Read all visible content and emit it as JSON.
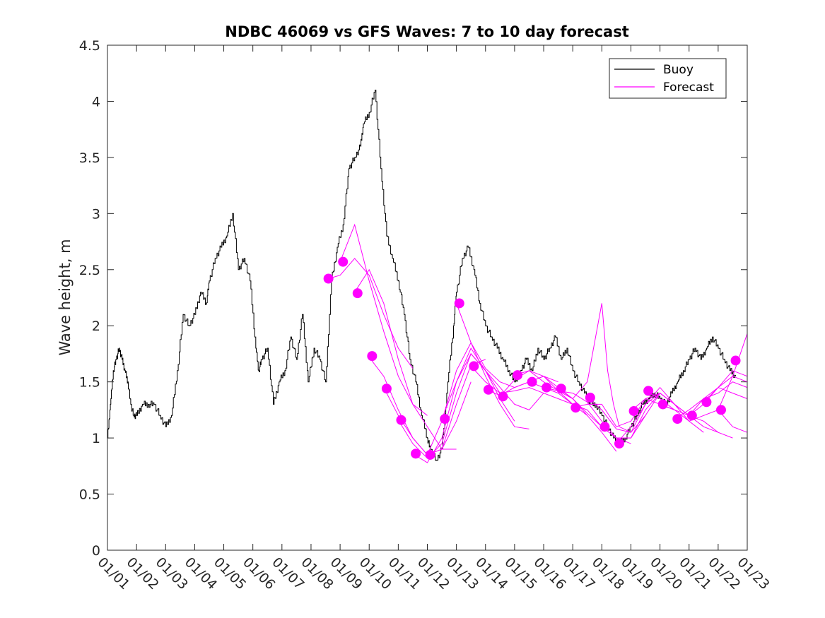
{
  "chart_data": {
    "type": "line",
    "title": "NDBC 46069 vs GFS Waves: 7 to 10 day forecast",
    "xlabel": "",
    "ylabel": "Wave height, m",
    "xlim": [
      0,
      22
    ],
    "ylim": [
      0,
      4.5
    ],
    "yticks": [
      0,
      0.5,
      1,
      1.5,
      2,
      2.5,
      3,
      3.5,
      4,
      4.5
    ],
    "ytick_labels": [
      "0",
      "0.5",
      "1",
      "1.5",
      "2",
      "2.5",
      "3",
      "3.5",
      "4",
      "4.5"
    ],
    "xtick_labels": [
      "01/01",
      "01/02",
      "01/03",
      "01/04",
      "01/05",
      "01/06",
      "01/07",
      "01/08",
      "01/09",
      "01/10",
      "01/11",
      "01/12",
      "01/13",
      "01/14",
      "01/15",
      "01/16",
      "01/17",
      "01/18",
      "01/19",
      "01/20",
      "01/21",
      "01/22",
      "01/23"
    ],
    "legend": {
      "position": "top-right",
      "entries": [
        {
          "name": "Buoy",
          "color": "#000000"
        },
        {
          "name": "Forecast",
          "color": "#ff00ff"
        }
      ]
    },
    "buoy": {
      "name": "Buoy",
      "color": "#000000",
      "x": [
        0,
        0.1,
        0.2,
        0.3,
        0.4,
        0.5,
        0.6,
        0.7,
        0.8,
        0.9,
        1.0,
        1.2,
        1.4,
        1.6,
        1.8,
        2.0,
        2.2,
        2.4,
        2.6,
        2.8,
        3.0,
        3.2,
        3.4,
        3.5,
        3.7,
        3.9,
        4.1,
        4.3,
        4.5,
        4.7,
        4.9,
        5.1,
        5.2,
        5.3,
        5.5,
        5.7,
        5.9,
        6.1,
        6.3,
        6.5,
        6.7,
        6.9,
        7.1,
        7.3,
        7.5,
        7.7,
        7.9,
        8.1,
        8.3,
        8.5,
        8.7,
        8.8,
        9.0,
        9.2,
        9.4,
        9.6,
        9.8,
        10.0,
        10.2,
        10.4,
        10.6,
        10.8,
        11.0,
        11.1,
        11.3,
        11.5,
        11.7,
        11.9,
        12.0,
        12.2,
        12.4,
        12.6,
        12.8,
        13.0,
        13.2,
        13.4,
        13.6,
        13.8,
        14.0,
        14.2,
        14.4,
        14.6,
        14.8,
        15.0,
        15.2,
        15.4,
        15.6,
        15.8,
        16.0,
        16.2,
        16.4,
        16.6,
        16.8,
        17.0,
        17.2,
        17.4,
        17.6,
        17.8,
        18.0,
        18.2,
        18.4,
        18.6,
        18.8,
        19.0,
        19.2,
        19.4,
        19.6,
        19.8,
        20.0,
        20.2,
        20.4,
        20.6,
        20.8,
        21.0,
        21.2,
        21.4,
        21.6
      ],
      "y": [
        1.0,
        1.3,
        1.6,
        1.7,
        1.8,
        1.7,
        1.6,
        1.5,
        1.3,
        1.2,
        1.2,
        1.3,
        1.3,
        1.3,
        1.2,
        1.1,
        1.2,
        1.6,
        2.1,
        2.0,
        2.1,
        2.3,
        2.2,
        2.4,
        2.6,
        2.7,
        2.8,
        3.0,
        2.5,
        2.6,
        2.4,
        1.8,
        1.6,
        1.7,
        1.8,
        1.3,
        1.5,
        1.6,
        1.9,
        1.7,
        2.1,
        1.5,
        1.8,
        1.7,
        1.5,
        2.4,
        2.7,
        2.9,
        3.4,
        3.5,
        3.6,
        3.8,
        3.9,
        4.1,
        3.4,
        2.8,
        2.6,
        2.4,
        2.1,
        1.7,
        1.5,
        1.2,
        1.0,
        0.9,
        0.8,
        0.9,
        1.5,
        2.0,
        2.3,
        2.6,
        2.7,
        2.5,
        2.2,
        2.0,
        1.9,
        1.8,
        1.7,
        1.6,
        1.5,
        1.6,
        1.7,
        1.6,
        1.8,
        1.7,
        1.8,
        1.9,
        1.7,
        1.8,
        1.6,
        1.5,
        1.4,
        1.3,
        1.3,
        1.2,
        1.1,
        1.0,
        0.95,
        1.0,
        1.1,
        1.2,
        1.3,
        1.35,
        1.4,
        1.35,
        1.3,
        1.4,
        1.5,
        1.6,
        1.7,
        1.8,
        1.7,
        1.8,
        1.9,
        1.8,
        1.7,
        1.6,
        1.55
      ]
    },
    "forecast_lines": [
      {
        "x": [
          7.6,
          8.0,
          8.5,
          9.0,
          9.5,
          10.0,
          10.5
        ],
        "y": [
          2.42,
          2.45,
          2.6,
          2.45,
          2.1,
          1.8,
          1.62
        ]
      },
      {
        "x": [
          8.0,
          8.5,
          9.0,
          9.5,
          10.0,
          10.5,
          11.0
        ],
        "y": [
          2.57,
          2.9,
          2.4,
          1.95,
          1.55,
          1.3,
          1.2
        ]
      },
      {
        "x": [
          8.5,
          9.0,
          9.5,
          10.0,
          10.5,
          11.0,
          11.5,
          12.0
        ],
        "y": [
          2.3,
          2.5,
          2.2,
          1.7,
          1.3,
          1.1,
          0.9,
          0.9
        ]
      },
      {
        "x": [
          9.0,
          9.5,
          10.0,
          10.5,
          11.0,
          11.5,
          12.0,
          12.5
        ],
        "y": [
          1.72,
          1.55,
          1.25,
          1.0,
          0.85,
          0.9,
          1.15,
          1.5
        ]
      },
      {
        "x": [
          9.5,
          10.0,
          10.5,
          11.0,
          11.5,
          12.0,
          12.5,
          13.0
        ],
        "y": [
          1.45,
          1.2,
          1.0,
          0.85,
          0.9,
          1.3,
          1.65,
          1.7
        ]
      },
      {
        "x": [
          10.0,
          10.5,
          11.0,
          11.5,
          12.0,
          12.5,
          13.0,
          13.5
        ],
        "y": [
          1.16,
          0.95,
          0.82,
          0.95,
          1.4,
          1.75,
          1.6,
          1.4
        ]
      },
      {
        "x": [
          10.5,
          11.0,
          11.5,
          12.0,
          12.5,
          13.0,
          13.5,
          14.0
        ],
        "y": [
          0.86,
          0.78,
          1.0,
          1.5,
          1.8,
          1.6,
          1.35,
          1.15
        ]
      },
      {
        "x": [
          11.0,
          11.5,
          12.0,
          12.5,
          13.0,
          13.5,
          14.0,
          14.5
        ],
        "y": [
          0.85,
          1.15,
          1.6,
          1.85,
          1.55,
          1.3,
          1.1,
          1.08
        ]
      },
      {
        "x": [
          11.5,
          12.0,
          12.5,
          13.0,
          13.5,
          14.0,
          14.5,
          15.0
        ],
        "y": [
          1.17,
          1.5,
          1.75,
          1.6,
          1.45,
          1.3,
          1.25,
          1.4
        ]
      },
      {
        "x": [
          12.0,
          12.5,
          13.0,
          13.5,
          14.0,
          14.5,
          15.0,
          15.5
        ],
        "y": [
          2.2,
          1.85,
          1.62,
          1.5,
          1.45,
          1.5,
          1.55,
          1.5
        ]
      },
      {
        "x": [
          12.5,
          13.0,
          13.5,
          14.0,
          14.5,
          15.0,
          15.5,
          16.0
        ],
        "y": [
          1.64,
          1.5,
          1.4,
          1.42,
          1.45,
          1.4,
          1.35,
          1.3
        ]
      },
      {
        "x": [
          13.0,
          13.5,
          14.0,
          14.5,
          15.0,
          15.5,
          16.0,
          16.5
        ],
        "y": [
          1.43,
          1.38,
          1.45,
          1.5,
          1.55,
          1.42,
          1.3,
          1.2
        ]
      },
      {
        "x": [
          13.5,
          14.0,
          14.5,
          15.0,
          15.5,
          16.0,
          16.5,
          17.0
        ],
        "y": [
          1.37,
          1.52,
          1.6,
          1.55,
          1.45,
          1.35,
          1.22,
          1.1
        ]
      },
      {
        "x": [
          14.0,
          14.5,
          15.0,
          15.5,
          16.0,
          16.5,
          17.0,
          17.5
        ],
        "y": [
          1.56,
          1.6,
          1.5,
          1.42,
          1.35,
          1.2,
          1.05,
          0.88
        ]
      },
      {
        "x": [
          14.5,
          15.0,
          15.5,
          16.0,
          16.5,
          17.0,
          17.5,
          18.0
        ],
        "y": [
          1.5,
          1.45,
          1.42,
          1.4,
          1.32,
          1.15,
          1.0,
          0.95
        ]
      },
      {
        "x": [
          15.0,
          15.5,
          16.0,
          16.5,
          17.0,
          17.5,
          18.0,
          18.5
        ],
        "y": [
          1.45,
          1.4,
          1.3,
          1.25,
          1.1,
          1.0,
          1.0,
          1.2
        ]
      },
      {
        "x": [
          15.5,
          16.0,
          16.5,
          17.0,
          17.2,
          17.4,
          17.6,
          18.0,
          18.5,
          19.0
        ],
        "y": [
          1.44,
          1.35,
          1.5,
          2.2,
          1.6,
          1.3,
          1.1,
          1.05,
          1.3,
          1.4
        ]
      },
      {
        "x": [
          16.0,
          16.5,
          17.0,
          17.5,
          18.0,
          18.5,
          19.0,
          19.5
        ],
        "y": [
          1.27,
          1.3,
          1.3,
          1.1,
          1.15,
          1.35,
          1.3,
          1.25
        ]
      },
      {
        "x": [
          16.5,
          17.0,
          17.5,
          18.0,
          18.5,
          19.0,
          19.5,
          20.0
        ],
        "y": [
          1.36,
          1.25,
          1.08,
          1.05,
          1.2,
          1.4,
          1.3,
          1.15
        ]
      },
      {
        "x": [
          17.0,
          17.5,
          18.0,
          18.5,
          19.0,
          19.5,
          20.0,
          20.5
        ],
        "y": [
          1.1,
          1.0,
          1.0,
          1.25,
          1.4,
          1.3,
          1.15,
          1.05
        ]
      },
      {
        "x": [
          17.5,
          18.0,
          18.5,
          19.0,
          19.5,
          20.0,
          20.5,
          21.0
        ],
        "y": [
          0.95,
          1.1,
          1.3,
          1.45,
          1.3,
          1.2,
          1.1,
          1.05
        ]
      },
      {
        "x": [
          18.0,
          18.5,
          19.0,
          19.5,
          20.0,
          20.5,
          21.0,
          21.5
        ],
        "y": [
          1.24,
          1.35,
          1.4,
          1.3,
          1.2,
          1.15,
          1.05,
          1.0
        ]
      },
      {
        "x": [
          18.5,
          19.0,
          19.5,
          20.0,
          20.5,
          21.0,
          21.5,
          22.0
        ],
        "y": [
          1.42,
          1.35,
          1.25,
          1.15,
          1.2,
          1.25,
          1.1,
          1.05
        ]
      },
      {
        "x": [
          19.0,
          19.5,
          20.0,
          20.5,
          21.0,
          21.5,
          22.0
        ],
        "y": [
          1.3,
          1.25,
          1.2,
          1.3,
          1.45,
          1.4,
          1.35
        ]
      },
      {
        "x": [
          19.5,
          20.0,
          20.5,
          21.0,
          21.5,
          22.0
        ],
        "y": [
          1.17,
          1.25,
          1.35,
          1.4,
          1.5,
          1.45
        ]
      },
      {
        "x": [
          20.0,
          20.5,
          21.0,
          21.5,
          22.0
        ],
        "y": [
          1.2,
          1.35,
          1.45,
          1.55,
          1.5
        ]
      },
      {
        "x": [
          20.5,
          21.0,
          21.5,
          22.0
        ],
        "y": [
          1.32,
          1.45,
          1.6,
          1.55
        ]
      },
      {
        "x": [
          21.0,
          21.5,
          22.0
        ],
        "y": [
          1.25,
          1.55,
          1.93
        ]
      }
    ],
    "forecast_points": {
      "name": "Forecast",
      "color": "#ff00ff",
      "x": [
        7.6,
        8.1,
        8.6,
        9.1,
        9.6,
        10.1,
        10.6,
        11.1,
        11.6,
        12.1,
        12.6,
        13.1,
        13.6,
        14.1,
        14.6,
        15.1,
        15.6,
        16.1,
        16.6,
        17.1,
        17.6,
        18.1,
        18.6,
        19.1,
        19.6,
        20.1,
        20.6,
        21.1,
        21.6
      ],
      "y": [
        2.42,
        2.57,
        2.29,
        1.73,
        1.44,
        1.16,
        0.86,
        0.85,
        1.17,
        2.2,
        1.64,
        1.43,
        1.37,
        1.56,
        1.5,
        1.45,
        1.44,
        1.27,
        1.36,
        1.1,
        0.95,
        1.24,
        1.42,
        1.3,
        1.17,
        1.2,
        1.32,
        1.25,
        1.69
      ]
    }
  }
}
